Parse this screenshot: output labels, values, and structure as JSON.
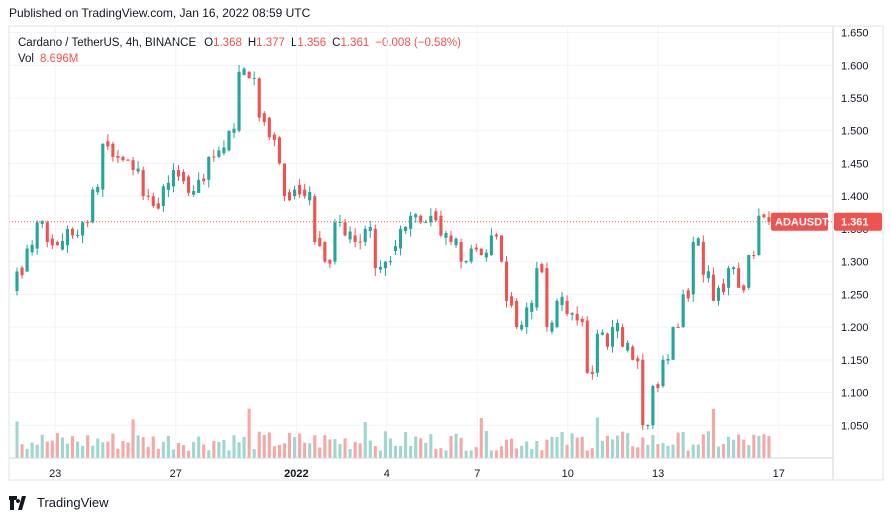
{
  "header": {
    "published": "Published on TradingView.com, Jan 16, 2022 08:59 UTC"
  },
  "legend": {
    "symbol": "Cardano / TetherUS, 4h, BINANCE",
    "open_label": "O",
    "open": "1.368",
    "high_label": "H",
    "high": "1.377",
    "low_label": "L",
    "low": "1.356",
    "close_label": "C",
    "close": "1.361",
    "change": "−0.008 (−0.58%)",
    "vol_label": "Vol",
    "vol": "8.696M"
  },
  "price_tag": {
    "ticker": "ADAUSDT",
    "price": "1.361",
    "value": 1.361
  },
  "footer": {
    "brand": "TradingView"
  },
  "colors": {
    "up": "#26a69a",
    "down": "#ef5350",
    "up_vol": "#9fd6cf",
    "down_vol": "#f5a9a7",
    "grid": "#f0f3fa",
    "tag": "#ef5350"
  },
  "chart_data": {
    "type": "candlestick",
    "interval": "4h",
    "ylim": [
      1.0,
      1.66
    ],
    "y_ticks": [
      "1.650",
      "1.600",
      "1.550",
      "1.500",
      "1.450",
      "1.400",
      "1.350",
      "1.300",
      "1.250",
      "1.200",
      "1.150",
      "1.100",
      "1.050"
    ],
    "x_ticks": [
      {
        "label": "23",
        "index": 8
      },
      {
        "label": "27",
        "index": 32
      },
      {
        "label": "2022",
        "index": 56,
        "bold": true
      },
      {
        "label": "4",
        "index": 74
      },
      {
        "label": "7",
        "index": 92
      },
      {
        "label": "10",
        "index": 110
      },
      {
        "label": "13",
        "index": 128
      },
      {
        "label": "17",
        "index": 152
      }
    ],
    "x_count": 162,
    "candle_range": [
      0,
      149
    ],
    "candles_anchor": [
      [
        1.255,
        1.285
      ],
      [
        1.285,
        1.32
      ],
      [
        1.32,
        1.36
      ],
      [
        1.36,
        1.33
      ],
      [
        1.33,
        1.325
      ],
      [
        1.325,
        1.35
      ],
      [
        1.35,
        1.34
      ],
      [
        1.34,
        1.36
      ],
      [
        1.36,
        1.41
      ],
      [
        1.41,
        1.48
      ],
      [
        1.48,
        1.46
      ],
      [
        1.46,
        1.455
      ],
      [
        1.455,
        1.44
      ],
      [
        1.44,
        1.4
      ],
      [
        1.4,
        1.385
      ],
      [
        1.385,
        1.415
      ],
      [
        1.415,
        1.44
      ],
      [
        1.44,
        1.43
      ],
      [
        1.43,
        1.405
      ],
      [
        1.405,
        1.425
      ],
      [
        1.425,
        1.46
      ],
      [
        1.46,
        1.47
      ],
      [
        1.47,
        1.5
      ],
      [
        1.5,
        1.59
      ],
      [
        1.59,
        1.58
      ],
      [
        1.58,
        1.52
      ],
      [
        1.52,
        1.49
      ],
      [
        1.49,
        1.45
      ],
      [
        1.45,
        1.4
      ],
      [
        1.4,
        1.41
      ],
      [
        1.41,
        1.4
      ],
      [
        1.4,
        1.33
      ],
      [
        1.33,
        1.3
      ],
      [
        1.3,
        1.36
      ],
      [
        1.36,
        1.34
      ],
      [
        1.34,
        1.33
      ],
      [
        1.33,
        1.35
      ],
      [
        1.35,
        1.29
      ],
      [
        1.29,
        1.3
      ],
      [
        1.3,
        1.32
      ],
      [
        1.32,
        1.35
      ],
      [
        1.35,
        1.37
      ],
      [
        1.37,
        1.36
      ],
      [
        1.36,
        1.37
      ],
      [
        1.37,
        1.34
      ],
      [
        1.34,
        1.33
      ],
      [
        1.33,
        1.3
      ],
      [
        1.3,
        1.32
      ],
      [
        1.32,
        1.31
      ],
      [
        1.31,
        1.34
      ],
      [
        1.34,
        1.3
      ],
      [
        1.3,
        1.24
      ],
      [
        1.24,
        1.2
      ],
      [
        1.2,
        1.23
      ],
      [
        1.23,
        1.29
      ],
      [
        1.29,
        1.2
      ],
      [
        1.2,
        1.24
      ],
      [
        1.24,
        1.22
      ],
      [
        1.22,
        1.21
      ],
      [
        1.21,
        1.13
      ],
      [
        1.13,
        1.19
      ],
      [
        1.19,
        1.17
      ],
      [
        1.17,
        1.2
      ],
      [
        1.2,
        1.17
      ],
      [
        1.17,
        1.15
      ],
      [
        1.15,
        1.05
      ],
      [
        1.05,
        1.11
      ],
      [
        1.11,
        1.15
      ],
      [
        1.15,
        1.2
      ],
      [
        1.2,
        1.25
      ],
      [
        1.25,
        1.33
      ],
      [
        1.33,
        1.28
      ],
      [
        1.28,
        1.24
      ],
      [
        1.24,
        1.26
      ],
      [
        1.26,
        1.29
      ],
      [
        1.29,
        1.26
      ],
      [
        1.26,
        1.31
      ],
      [
        1.31,
        1.37
      ],
      [
        1.37,
        1.361
      ]
    ],
    "candle_anchor_index": [
      0,
      3,
      6,
      9,
      12,
      15,
      18,
      21,
      24,
      27,
      30,
      33,
      36,
      38,
      40,
      42,
      44,
      46,
      48,
      50,
      53,
      56,
      59,
      62,
      64,
      66,
      68,
      70,
      72,
      74,
      76,
      78,
      80,
      82,
      84,
      86,
      88,
      90,
      92,
      94,
      96,
      98,
      100,
      102,
      104,
      106,
      108,
      110,
      112,
      114,
      116,
      118,
      120,
      122,
      124,
      126,
      128,
      130,
      132,
      134,
      136,
      138,
      140,
      142,
      144,
      146,
      148,
      150,
      152,
      154,
      156,
      158,
      160,
      162,
      164,
      166,
      168,
      170,
      172
    ],
    "volume_range": [
      0,
      10
    ],
    "volume_note": "8.696M last"
  }
}
